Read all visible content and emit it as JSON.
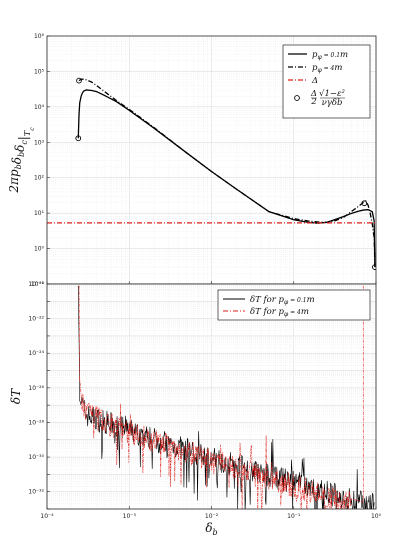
{
  "chart_data": [
    {
      "type": "line",
      "ylabel": "2πp_bδ_bδ_c|_{T_c}",
      "xscale": "log",
      "yscale": "log",
      "xlim": [
        0.0001,
        1
      ],
      "ylim": [
        0.1,
        1000000
      ],
      "grid": true,
      "legend_position": "top-right",
      "x_tick_labels": [
        "10⁻⁴",
        "10⁻³",
        "10⁻²",
        "10⁻¹",
        "10⁰"
      ],
      "y_tick_labels": [
        "10⁻¹",
        "10⁰",
        "10¹",
        "10²",
        "10³",
        "10⁴",
        "10⁵",
        "10⁶"
      ],
      "series": [
        {
          "name": "p_φ = 0.1m",
          "style": "solid",
          "color": "#000000",
          "x": [
            0.00024,
            0.000245,
            0.00025,
            0.00026,
            0.00027,
            0.00028,
            0.0003,
            0.00035,
            0.0004,
            0.0005,
            0.0007,
            0.001,
            0.002,
            0.005,
            0.01,
            0.02,
            0.05,
            0.1,
            0.15,
            0.2,
            0.25,
            0.3,
            0.4,
            0.5,
            0.6,
            0.7,
            0.8,
            0.9,
            0.95,
            0.97
          ],
          "y": [
            1300,
            6000,
            13000,
            20000,
            25000,
            28000,
            30000,
            29000,
            27000,
            21000,
            14000,
            8000,
            2500,
            500,
            150,
            48,
            11,
            6.5,
            5.5,
            5.2,
            5.5,
            6.3,
            8.0,
            9.8,
            11.2,
            12.2,
            12.5,
            11,
            6,
            0.3
          ]
        },
        {
          "name": "p_φ = 4m",
          "style": "dashdot",
          "color": "#000000",
          "x": [
            0.000245,
            0.00026,
            0.00028,
            0.0003,
            0.00035,
            0.0004,
            0.0005,
            0.0007,
            0.001,
            0.002,
            0.005,
            0.01,
            0.02,
            0.05,
            0.1,
            0.15,
            0.2,
            0.25,
            0.3,
            0.4,
            0.5,
            0.6,
            0.7,
            0.75,
            0.8,
            0.85,
            0.9,
            0.95,
            0.97
          ],
          "y": [
            55000,
            60000,
            61000,
            58000,
            50000,
            40000,
            27000,
            15000,
            8500,
            2600,
            500,
            150,
            48,
            11,
            7,
            6,
            5.6,
            5.5,
            5.8,
            7.5,
            11,
            15,
            20,
            22,
            17,
            10,
            5,
            2,
            0.3
          ]
        },
        {
          "name": "Δ",
          "style": "dashdot",
          "color": "#e0201b",
          "x": [
            0.0001,
            1
          ],
          "y": [
            5.3,
            5.3
          ]
        },
        {
          "name": "Δ/2 · √(1−ε²)/(ν γ δ_b)",
          "style": "markers",
          "color": "#000000",
          "x": [
            0.00024,
            0.000245,
            0.72,
            0.97
          ],
          "y": [
            1300,
            55000,
            19,
            0.3
          ]
        }
      ]
    },
    {
      "type": "line",
      "xlabel": "δ_b",
      "ylabel": "δT",
      "xscale": "log",
      "yscale": "log",
      "xlim": [
        0.0001,
        1
      ],
      "ylim": [
        1e-33,
        1e-20
      ],
      "grid": true,
      "legend_position": "top-right",
      "x_tick_labels": [
        "10⁻⁴",
        "10⁻³",
        "10⁻²",
        "10⁻¹",
        "10⁰"
      ],
      "y_tick_labels": [
        "10⁻³²",
        "10⁻³⁰",
        "10⁻²⁸",
        "10⁻²⁶",
        "10⁻²⁴",
        "10⁻²²",
        "10⁻²⁰"
      ],
      "series": [
        {
          "name": "δT for p_φ = 0.1m",
          "style": "solid",
          "color": "#000000",
          "trend_x": [
            0.00024,
            0.00025,
            0.00026,
            0.0003,
            0.0005,
            0.001,
            0.002,
            0.005,
            0.01,
            0.02,
            0.05,
            0.1,
            0.2,
            0.3,
            0.5,
            0.7,
            0.95
          ],
          "trend_log10_y": [
            -20.1,
            -26,
            -26.8,
            -27.5,
            -27.9,
            -28.4,
            -28.9,
            -29.5,
            -30.0,
            -30.4,
            -31.0,
            -31.4,
            -31.8,
            -32.1,
            -32.4,
            -32.6,
            -32.7
          ]
        },
        {
          "name": "δT for p_φ = 4m",
          "style": "dashdot",
          "color": "#e0201b",
          "trend_x": [
            0.000245,
            0.00025,
            0.00026,
            0.0003,
            0.0005,
            0.001,
            0.002,
            0.005,
            0.01,
            0.02,
            0.05,
            0.1,
            0.2,
            0.3,
            0.5,
            0.7
          ],
          "trend_log10_y": [
            -20.1,
            -25.6,
            -26.6,
            -27.4,
            -27.9,
            -28.5,
            -29.0,
            -29.6,
            -30.2,
            -30.6,
            -31.2,
            -31.6,
            -32.0,
            -32.3,
            -32.6,
            -20.1
          ]
        }
      ]
    }
  ]
}
